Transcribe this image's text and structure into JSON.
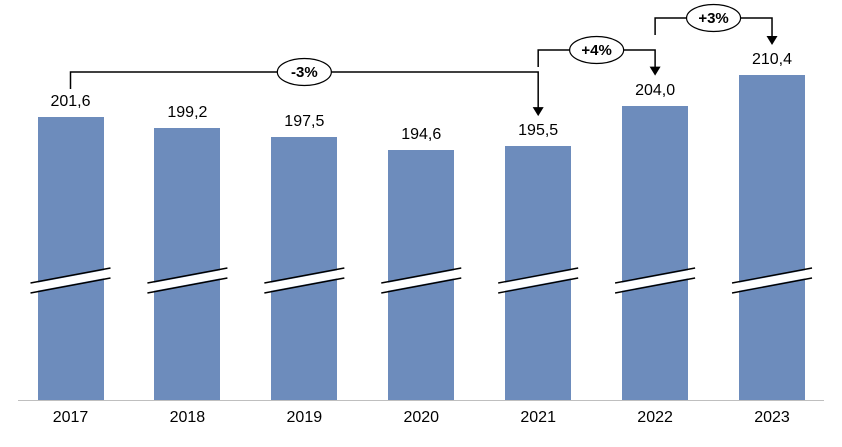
{
  "chart_data": {
    "type": "bar",
    "title": "",
    "xlabel": "",
    "ylabel": "",
    "categories": [
      "2017",
      "2018",
      "2019",
      "2020",
      "2021",
      "2022",
      "2023"
    ],
    "values": [
      201.6,
      199.2,
      197.5,
      194.6,
      195.5,
      204.0,
      210.4
    ],
    "value_labels": [
      "201,6",
      "199,2",
      "197,5",
      "194,6",
      "195,5",
      "204,0",
      "210,4"
    ],
    "bar_color": "#6d8cbc",
    "axis_line_color": "#bfbfbf",
    "annotation_line_color": "#000000",
    "axis_break": true,
    "grid": false,
    "legend": false,
    "annotations": [
      {
        "label": "-3%",
        "from": "2017",
        "to": "2021"
      },
      {
        "label": "+4%",
        "from": "2021",
        "to": "2022"
      },
      {
        "label": "+3%",
        "from": "2022",
        "to": "2023"
      }
    ]
  }
}
